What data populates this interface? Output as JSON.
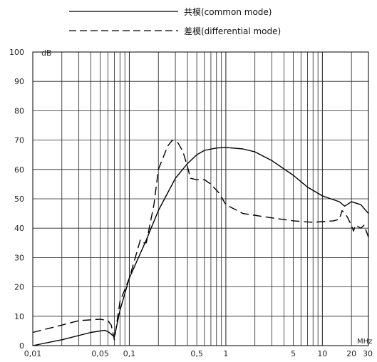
{
  "chart_data": {
    "type": "line",
    "x_scale": "log",
    "xlim": [
      0.01,
      30
    ],
    "ylim": [
      0,
      100
    ],
    "y_unit": "dB",
    "x_unit": "MHz",
    "x_ticks": [
      {
        "v": 0.01,
        "label": "0,01"
      },
      {
        "v": 0.05,
        "label": "0,05"
      },
      {
        "v": 0.1,
        "label": "0,1"
      },
      {
        "v": 0.5,
        "label": "0,5"
      },
      {
        "v": 1,
        "label": "1"
      },
      {
        "v": 5,
        "label": "5"
      },
      {
        "v": 10,
        "label": "10"
      },
      {
        "v": 20,
        "label": "20"
      },
      {
        "v": 30,
        "label": "30"
      }
    ],
    "y_ticks": [
      {
        "v": 0,
        "label": "0"
      },
      {
        "v": 10,
        "label": "10"
      },
      {
        "v": 20,
        "label": "20"
      },
      {
        "v": 30,
        "label": "30"
      },
      {
        "v": 40,
        "label": "40"
      },
      {
        "v": 50,
        "label": "50"
      },
      {
        "v": 60,
        "label": "60"
      },
      {
        "v": 70,
        "label": "70"
      },
      {
        "v": 80,
        "label": "80"
      },
      {
        "v": 90,
        "label": "90"
      },
      {
        "v": 100,
        "label": "100"
      }
    ],
    "grid": true,
    "legend_position": "top",
    "series": [
      {
        "name": "共模(common mode)",
        "style": "solid",
        "color": "#000000",
        "points": [
          [
            0.01,
            0
          ],
          [
            0.02,
            2
          ],
          [
            0.04,
            4.5
          ],
          [
            0.055,
            5.2
          ],
          [
            0.06,
            4.8
          ],
          [
            0.07,
            3
          ],
          [
            0.08,
            12
          ],
          [
            0.1,
            23
          ],
          [
            0.15,
            36
          ],
          [
            0.2,
            46
          ],
          [
            0.3,
            57
          ],
          [
            0.4,
            62
          ],
          [
            0.5,
            65
          ],
          [
            0.6,
            66.5
          ],
          [
            0.8,
            67.3
          ],
          [
            1,
            67.5
          ],
          [
            1.5,
            67
          ],
          [
            2,
            66
          ],
          [
            3,
            63
          ],
          [
            5,
            58
          ],
          [
            7,
            54
          ],
          [
            10,
            51
          ],
          [
            15,
            49
          ],
          [
            17,
            47.5
          ],
          [
            18,
            48
          ],
          [
            20,
            49
          ],
          [
            25,
            48
          ],
          [
            30,
            45
          ]
        ]
      },
      {
        "name": "差模(differential mode)",
        "style": "dashed",
        "color": "#000000",
        "points": [
          [
            0.01,
            4.5
          ],
          [
            0.02,
            7
          ],
          [
            0.03,
            8.5
          ],
          [
            0.05,
            9
          ],
          [
            0.06,
            8.5
          ],
          [
            0.065,
            7
          ],
          [
            0.07,
            2
          ],
          [
            0.08,
            15
          ],
          [
            0.1,
            23
          ],
          [
            0.12,
            32
          ],
          [
            0.13,
            36
          ],
          [
            0.14,
            35
          ],
          [
            0.15,
            35
          ],
          [
            0.18,
            48
          ],
          [
            0.2,
            60
          ],
          [
            0.25,
            68
          ],
          [
            0.28,
            70
          ],
          [
            0.32,
            69
          ],
          [
            0.36,
            66
          ],
          [
            0.4,
            61
          ],
          [
            0.43,
            57
          ],
          [
            0.5,
            56.5
          ],
          [
            0.6,
            56.5
          ],
          [
            0.7,
            55
          ],
          [
            0.85,
            52
          ],
          [
            1,
            48
          ],
          [
            1.5,
            45
          ],
          [
            3,
            43.5
          ],
          [
            5,
            42.5
          ],
          [
            8,
            42
          ],
          [
            13,
            42.5
          ],
          [
            15,
            43
          ],
          [
            16,
            46
          ],
          [
            18,
            44
          ],
          [
            20,
            41
          ],
          [
            21,
            39
          ],
          [
            22,
            41
          ],
          [
            25,
            40
          ],
          [
            27,
            41
          ],
          [
            30,
            37
          ]
        ]
      }
    ]
  }
}
